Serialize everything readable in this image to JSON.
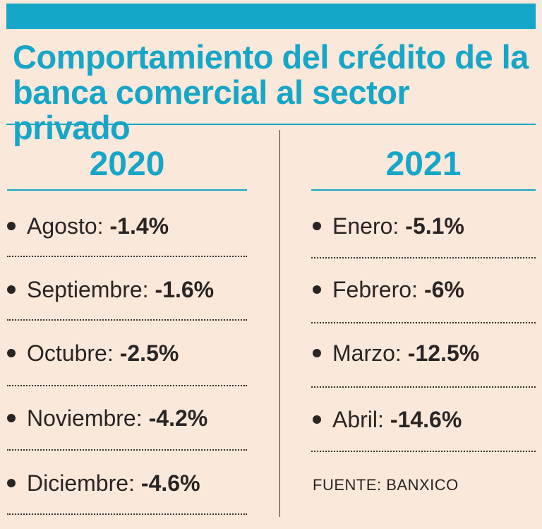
{
  "title": {
    "line1": "Comportamiento del crédito de la",
    "line2": "banca comercial al sector privado"
  },
  "columns": [
    {
      "year": "2020",
      "items": [
        {
          "label": "Agosto",
          "value": "-1.4%"
        },
        {
          "label": "Septiembre",
          "value": "-1.6%"
        },
        {
          "label": "Octubre",
          "value": "-2.5%"
        },
        {
          "label": "Noviembre",
          "value": "-4.2%"
        },
        {
          "label": "Diciembre",
          "value": "-4.6%"
        }
      ]
    },
    {
      "year": "2021",
      "items": [
        {
          "label": "Enero",
          "value": "-5.1%"
        },
        {
          "label": "Febrero",
          "value": "-6%"
        },
        {
          "label": "Marzo",
          "value": "-12.5%"
        },
        {
          "label": "Abril",
          "value": "-14.6%"
        }
      ]
    }
  ],
  "source": "FUENTE: BANXICO",
  "colors": {
    "accent": "#16a6c7",
    "background": "#fae8da",
    "text": "#2a2422"
  }
}
